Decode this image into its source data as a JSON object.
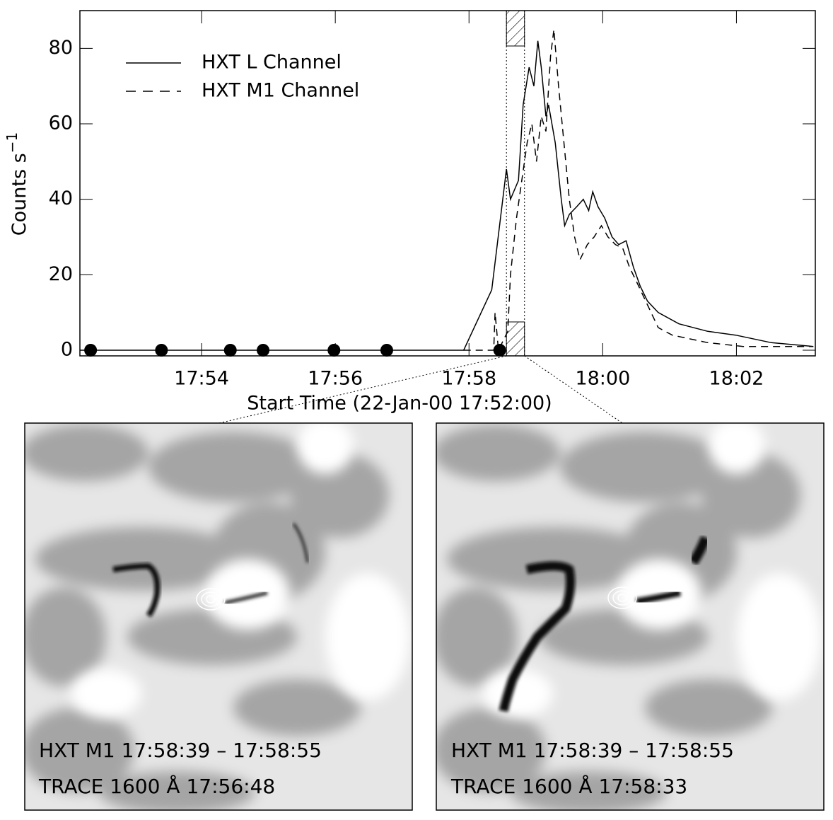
{
  "chart_data": {
    "type": "line",
    "x_label": "Start Time (22-Jan-00 17:52:00)",
    "y_label": "Counts s",
    "y_label_superscript": "−1",
    "xlim": [
      0.18,
      11.18
    ],
    "ylim": [
      -1.5,
      90
    ],
    "xticks": [
      {
        "value": 2,
        "label": "17:54"
      },
      {
        "value": 4,
        "label": "17:56"
      },
      {
        "value": 6,
        "label": "17:58"
      },
      {
        "value": 8,
        "label": "18:00"
      },
      {
        "value": 10,
        "label": "18:02"
      }
    ],
    "yticks": [
      0,
      20,
      40,
      60,
      80
    ],
    "legend": "upper left",
    "series": [
      {
        "name": "HXT L Channel",
        "color": "#000000",
        "dash": "solid",
        "x": [
          0.18,
          5.92,
          6.34,
          6.56,
          6.62,
          6.74,
          6.81,
          6.9,
          6.97,
          7.03,
          7.08,
          7.15,
          7.19,
          7.29,
          7.38,
          7.43,
          7.5,
          7.61,
          7.71,
          7.79,
          7.85,
          7.93,
          8.03,
          8.14,
          8.24,
          8.35,
          8.46,
          8.56,
          8.67,
          8.83,
          9.14,
          9.57,
          9.99,
          10.52,
          11.15
        ],
        "values": [
          0,
          0,
          16,
          48,
          40,
          45,
          65,
          75,
          70,
          82,
          75,
          62,
          65,
          55,
          40,
          33,
          36,
          38,
          40,
          37,
          42,
          38,
          35,
          30,
          28,
          29,
          22,
          17,
          13,
          10,
          7,
          5,
          4,
          2,
          1
        ]
      },
      {
        "name": "HXT M1 Channel",
        "color": "#000000",
        "dash": "dashed",
        "x": [
          5.92,
          6.37,
          6.39,
          6.44,
          6.58,
          6.62,
          6.71,
          6.79,
          6.87,
          6.94,
          7.01,
          7.08,
          7.15,
          7.22,
          7.27,
          7.34,
          7.42,
          7.5,
          7.58,
          7.66,
          7.77,
          7.87,
          7.98,
          8.08,
          8.19,
          8.3,
          8.4,
          8.51,
          8.67,
          8.83,
          9.04,
          9.57,
          10.1,
          11.15
        ],
        "values": [
          0,
          0,
          10,
          0,
          5,
          20,
          35,
          45,
          55,
          60,
          50,
          62,
          58,
          78,
          85,
          70,
          55,
          40,
          30,
          24,
          28,
          30,
          33,
          30,
          28,
          27,
          22,
          18,
          12,
          6,
          4,
          2,
          1,
          1
        ]
      }
    ],
    "markers": {
      "x": [
        0.34,
        1.4,
        2.43,
        2.92,
        3.98,
        4.77,
        6.46
      ],
      "values": [
        0,
        0,
        0,
        0,
        0,
        0,
        0
      ]
    },
    "shaded_interval": [
      6.56,
      6.83
    ]
  },
  "panels": [
    {
      "lines": [
        "HXT M1 17:58:39 – 17:58:55",
        "TRACE 1600 Å 17:56:48"
      ]
    },
    {
      "lines": [
        "HXT M1 17:58:39 – 17:58:55",
        "TRACE 1600 Å 17:58:33"
      ]
    }
  ]
}
